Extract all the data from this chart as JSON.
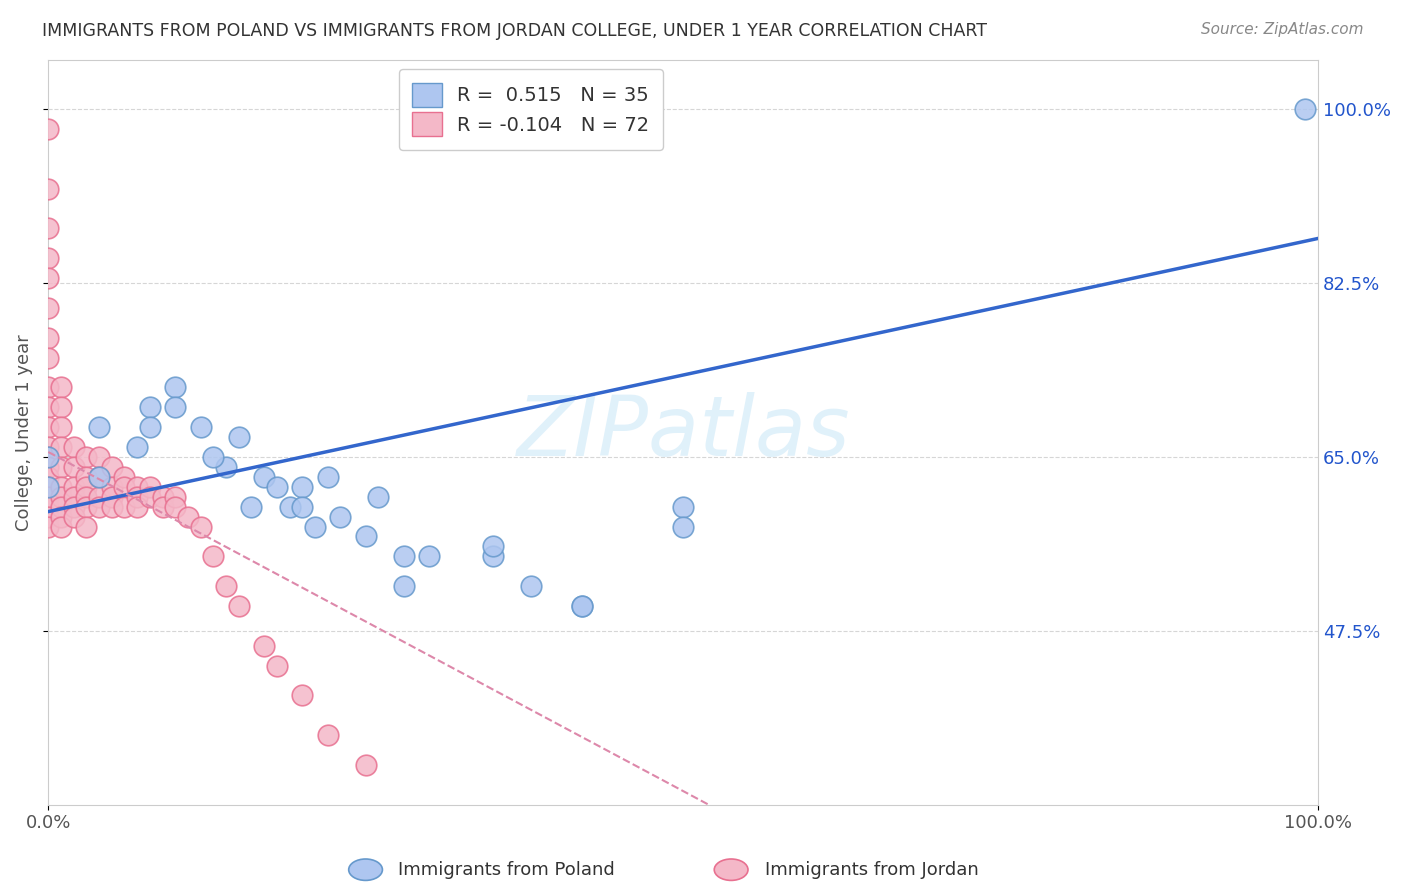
{
  "title": "IMMIGRANTS FROM POLAND VS IMMIGRANTS FROM JORDAN COLLEGE, UNDER 1 YEAR CORRELATION CHART",
  "source": "Source: ZipAtlas.com",
  "ylabel": "College, Under 1 year",
  "xlim": [
    0.0,
    1.0
  ],
  "ylim": [
    0.3,
    1.05
  ],
  "ytick_values": [
    0.475,
    0.65,
    0.825,
    1.0
  ],
  "ytick_labels": [
    "47.5%",
    "65.0%",
    "82.5%",
    "100.0%"
  ],
  "xtick_values": [
    0.0,
    1.0
  ],
  "xtick_labels": [
    "0.0%",
    "100.0%"
  ],
  "right_ytick_values": [
    1.0,
    0.825,
    0.65,
    0.475
  ],
  "right_ytick_labels": [
    "100.0%",
    "82.5%",
    "65.0%",
    "47.5%"
  ],
  "poland_color": "#aec6f0",
  "poland_edge": "#6699cc",
  "jordan_color": "#f4b8c8",
  "jordan_edge": "#e87090",
  "poland_line_color": "#3366cc",
  "jordan_line_color": "#dd88aa",
  "grid_color": "#cccccc",
  "background_color": "#ffffff",
  "poland_R": 0.515,
  "poland_N": 35,
  "jordan_R": -0.104,
  "jordan_N": 72,
  "poland_line_x0": 0.0,
  "poland_line_y0": 0.595,
  "poland_line_x1": 1.0,
  "poland_line_y1": 0.87,
  "jordan_line_x0": 0.0,
  "jordan_line_y0": 0.655,
  "jordan_line_x1": 0.52,
  "jordan_line_y1": 0.3,
  "poland_scatter_x": [
    0.0,
    0.0,
    0.04,
    0.07,
    0.08,
    0.1,
    0.12,
    0.14,
    0.15,
    0.17,
    0.18,
    0.19,
    0.2,
    0.21,
    0.22,
    0.23,
    0.25,
    0.26,
    0.28,
    0.3,
    0.35,
    0.38,
    0.42,
    0.5,
    0.04,
    0.08,
    0.1,
    0.13,
    0.16,
    0.2,
    0.28,
    0.35,
    0.42,
    0.5,
    0.99
  ],
  "poland_scatter_y": [
    0.65,
    0.62,
    0.68,
    0.66,
    0.7,
    0.72,
    0.68,
    0.64,
    0.67,
    0.63,
    0.62,
    0.6,
    0.62,
    0.58,
    0.63,
    0.59,
    0.57,
    0.61,
    0.55,
    0.55,
    0.55,
    0.52,
    0.5,
    0.6,
    0.63,
    0.68,
    0.7,
    0.65,
    0.6,
    0.6,
    0.52,
    0.56,
    0.5,
    0.58,
    1.0
  ],
  "jordan_scatter_x": [
    0.0,
    0.0,
    0.0,
    0.0,
    0.0,
    0.0,
    0.0,
    0.0,
    0.0,
    0.0,
    0.0,
    0.0,
    0.0,
    0.0,
    0.0,
    0.0,
    0.0,
    0.0,
    0.0,
    0.0,
    0.01,
    0.01,
    0.01,
    0.01,
    0.01,
    0.01,
    0.01,
    0.01,
    0.01,
    0.01,
    0.02,
    0.02,
    0.02,
    0.02,
    0.02,
    0.02,
    0.03,
    0.03,
    0.03,
    0.03,
    0.03,
    0.03,
    0.04,
    0.04,
    0.04,
    0.04,
    0.05,
    0.05,
    0.05,
    0.05,
    0.06,
    0.06,
    0.06,
    0.07,
    0.07,
    0.07,
    0.08,
    0.08,
    0.09,
    0.09,
    0.1,
    0.1,
    0.11,
    0.12,
    0.13,
    0.14,
    0.15,
    0.17,
    0.18,
    0.2,
    0.22,
    0.25
  ],
  "jordan_scatter_y": [
    0.98,
    0.92,
    0.88,
    0.85,
    0.83,
    0.8,
    0.77,
    0.75,
    0.72,
    0.7,
    0.68,
    0.66,
    0.65,
    0.64,
    0.63,
    0.62,
    0.61,
    0.6,
    0.59,
    0.58,
    0.72,
    0.7,
    0.68,
    0.66,
    0.64,
    0.62,
    0.61,
    0.6,
    0.59,
    0.58,
    0.66,
    0.64,
    0.62,
    0.61,
    0.6,
    0.59,
    0.65,
    0.63,
    0.62,
    0.61,
    0.6,
    0.58,
    0.65,
    0.63,
    0.61,
    0.6,
    0.64,
    0.62,
    0.61,
    0.6,
    0.63,
    0.62,
    0.6,
    0.62,
    0.61,
    0.6,
    0.62,
    0.61,
    0.61,
    0.6,
    0.61,
    0.6,
    0.59,
    0.58,
    0.55,
    0.52,
    0.5,
    0.46,
    0.44,
    0.41,
    0.37,
    0.34
  ]
}
